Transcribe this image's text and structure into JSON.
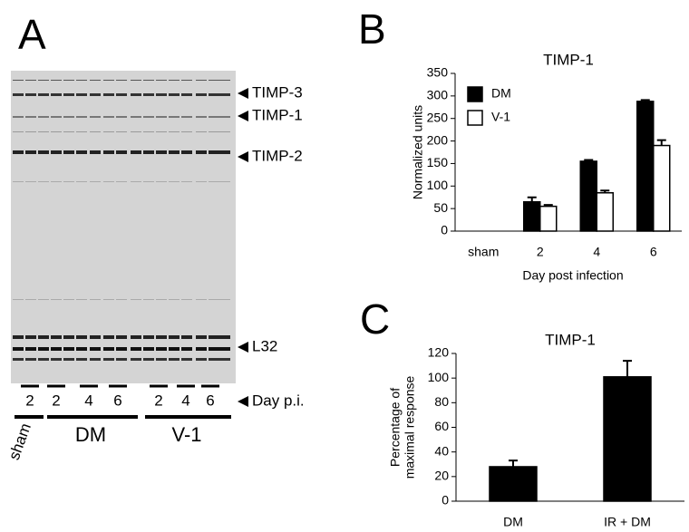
{
  "gel": {
    "panel": "A",
    "band_labels": [
      "TIMP-3",
      "TIMP-1",
      "TIMP-2",
      "L32",
      "Day p.i."
    ],
    "lane_labels": [
      "2",
      "2",
      "4",
      "6",
      "2",
      "4",
      "6"
    ],
    "group_labels": [
      "sham",
      "DM",
      "V-1"
    ]
  },
  "chart_data": [
    {
      "type": "bar",
      "panel": "B",
      "title": "TIMP-1",
      "xlabel": "Day post infection",
      "ylabel": "Normalized units",
      "categories": [
        "sham",
        "2",
        "4",
        "6"
      ],
      "series": [
        {
          "name": "DM",
          "color": "#000000",
          "values": [
            null,
            65,
            155,
            288
          ],
          "errors": [
            null,
            10,
            3,
            3
          ]
        },
        {
          "name": "V-1",
          "color": "#ffffff",
          "values": [
            null,
            55,
            85,
            190
          ],
          "errors": [
            null,
            3,
            5,
            12
          ]
        }
      ],
      "ylim": [
        0,
        350
      ],
      "yticks": [
        0,
        50,
        100,
        150,
        200,
        250,
        300,
        350
      ],
      "legend": "upper-left"
    },
    {
      "type": "bar",
      "panel": "C",
      "title": "TIMP-1",
      "ylabel": [
        "Percentage of",
        "maximal response"
      ],
      "categories": [
        "DM",
        "IR + DM"
      ],
      "values": [
        28,
        101
      ],
      "errors": [
        5,
        13
      ],
      "color": "#000000",
      "ylim": [
        0,
        120
      ],
      "yticks": [
        0,
        20,
        40,
        60,
        80,
        100,
        120
      ]
    }
  ]
}
